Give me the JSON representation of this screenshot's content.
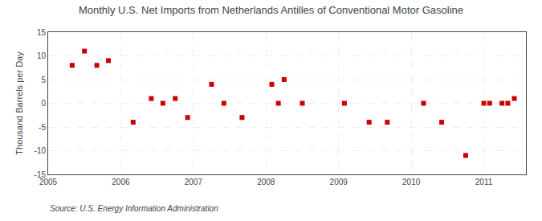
{
  "chart_data": {
    "type": "scatter",
    "title": "Monthly U.S. Net Imports from Netherlands Antilles of Conventional Motor Gasoline",
    "ylabel": "Thousand Barrels per Day",
    "annotations": [
      "Source: U.S. Energy Information Administration"
    ],
    "x": [
      2005.33,
      2005.5,
      2005.67,
      2005.83,
      2006.17,
      2006.42,
      2006.58,
      2006.75,
      2006.92,
      2007.25,
      2007.42,
      2007.67,
      2008.08,
      2008.17,
      2008.25,
      2008.5,
      2009.08,
      2009.42,
      2009.67,
      2010.17,
      2010.42,
      2010.75,
      2011.0,
      2011.08,
      2011.25,
      2011.33,
      2011.42
    ],
    "values": [
      8,
      11,
      8,
      9,
      -4,
      1,
      0,
      1,
      -3,
      4,
      0,
      -3,
      4,
      0,
      5,
      0,
      0,
      -4,
      -4,
      0,
      -4,
      -11,
      0,
      0,
      0,
      0,
      1
    ],
    "color": "#cc0000",
    "marker": "square",
    "xlim": [
      2005.0,
      2011.58
    ],
    "ylim": [
      -15,
      15
    ],
    "xticks": [
      2005,
      2006,
      2007,
      2008,
      2009,
      2010,
      2011
    ],
    "yticks": [
      -15,
      -10,
      -5,
      0,
      5,
      10,
      15
    ],
    "grid": true
  }
}
